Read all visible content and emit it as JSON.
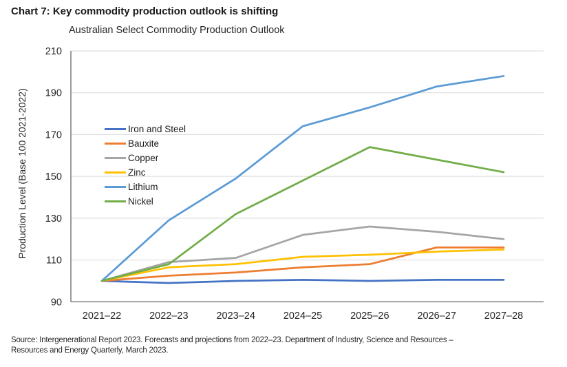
{
  "title": "Chart 7: Key commodity production outlook is shifting",
  "chart": {
    "subtitle": "Australian Select Commodity Production Outlook",
    "y_axis_label": "Production Level (Base 100 2021-2022)"
  },
  "source": {
    "line1": "Source: Intergenerational Report 2023. Forecasts and projections from 2022–23. Department of Industry, Science and Resources –",
    "line2": "Resources and Energy Quarterly, March 2023."
  },
  "colors": {
    "gridline": "#d9d9d9",
    "axis": "#595959",
    "tick_text": "#262626"
  },
  "chart_data": {
    "type": "line",
    "title": "Australian Select Commodity Production Outlook",
    "xlabel": "",
    "ylabel": "Production Level (Base 100 2021-2022)",
    "ylim": [
      90,
      210
    ],
    "ytick_interval": 20,
    "yticks": [
      90,
      110,
      130,
      150,
      170,
      190,
      210
    ],
    "grid": true,
    "legend_position": "inside-upper-left",
    "categories": [
      "2021–22",
      "2022–23",
      "2023–24",
      "2024–25",
      "2025–26",
      "2026–27",
      "2027–28"
    ],
    "series": [
      {
        "name": "Iron and Steel",
        "color": "#4472C4",
        "values": [
          100,
          99,
          100,
          100.5,
          100,
          100.5,
          100.5
        ]
      },
      {
        "name": "Bauxite",
        "color": "#ED7D31",
        "values": [
          100,
          102.5,
          104,
          106.5,
          108,
          116,
          116
        ]
      },
      {
        "name": "Copper",
        "color": "#A5A5A5",
        "values": [
          100,
          109,
          111,
          122,
          126,
          123.5,
          120
        ]
      },
      {
        "name": "Zinc",
        "color": "#FFC000",
        "values": [
          100,
          106.5,
          108,
          111.5,
          112.5,
          114,
          115
        ]
      },
      {
        "name": "Lithium",
        "color": "#5B9BD5",
        "values": [
          100,
          129,
          149,
          174,
          183,
          193,
          198
        ]
      },
      {
        "name": "Nickel",
        "color": "#70AD47",
        "values": [
          100,
          108,
          132,
          148,
          164,
          158,
          152
        ]
      }
    ]
  }
}
